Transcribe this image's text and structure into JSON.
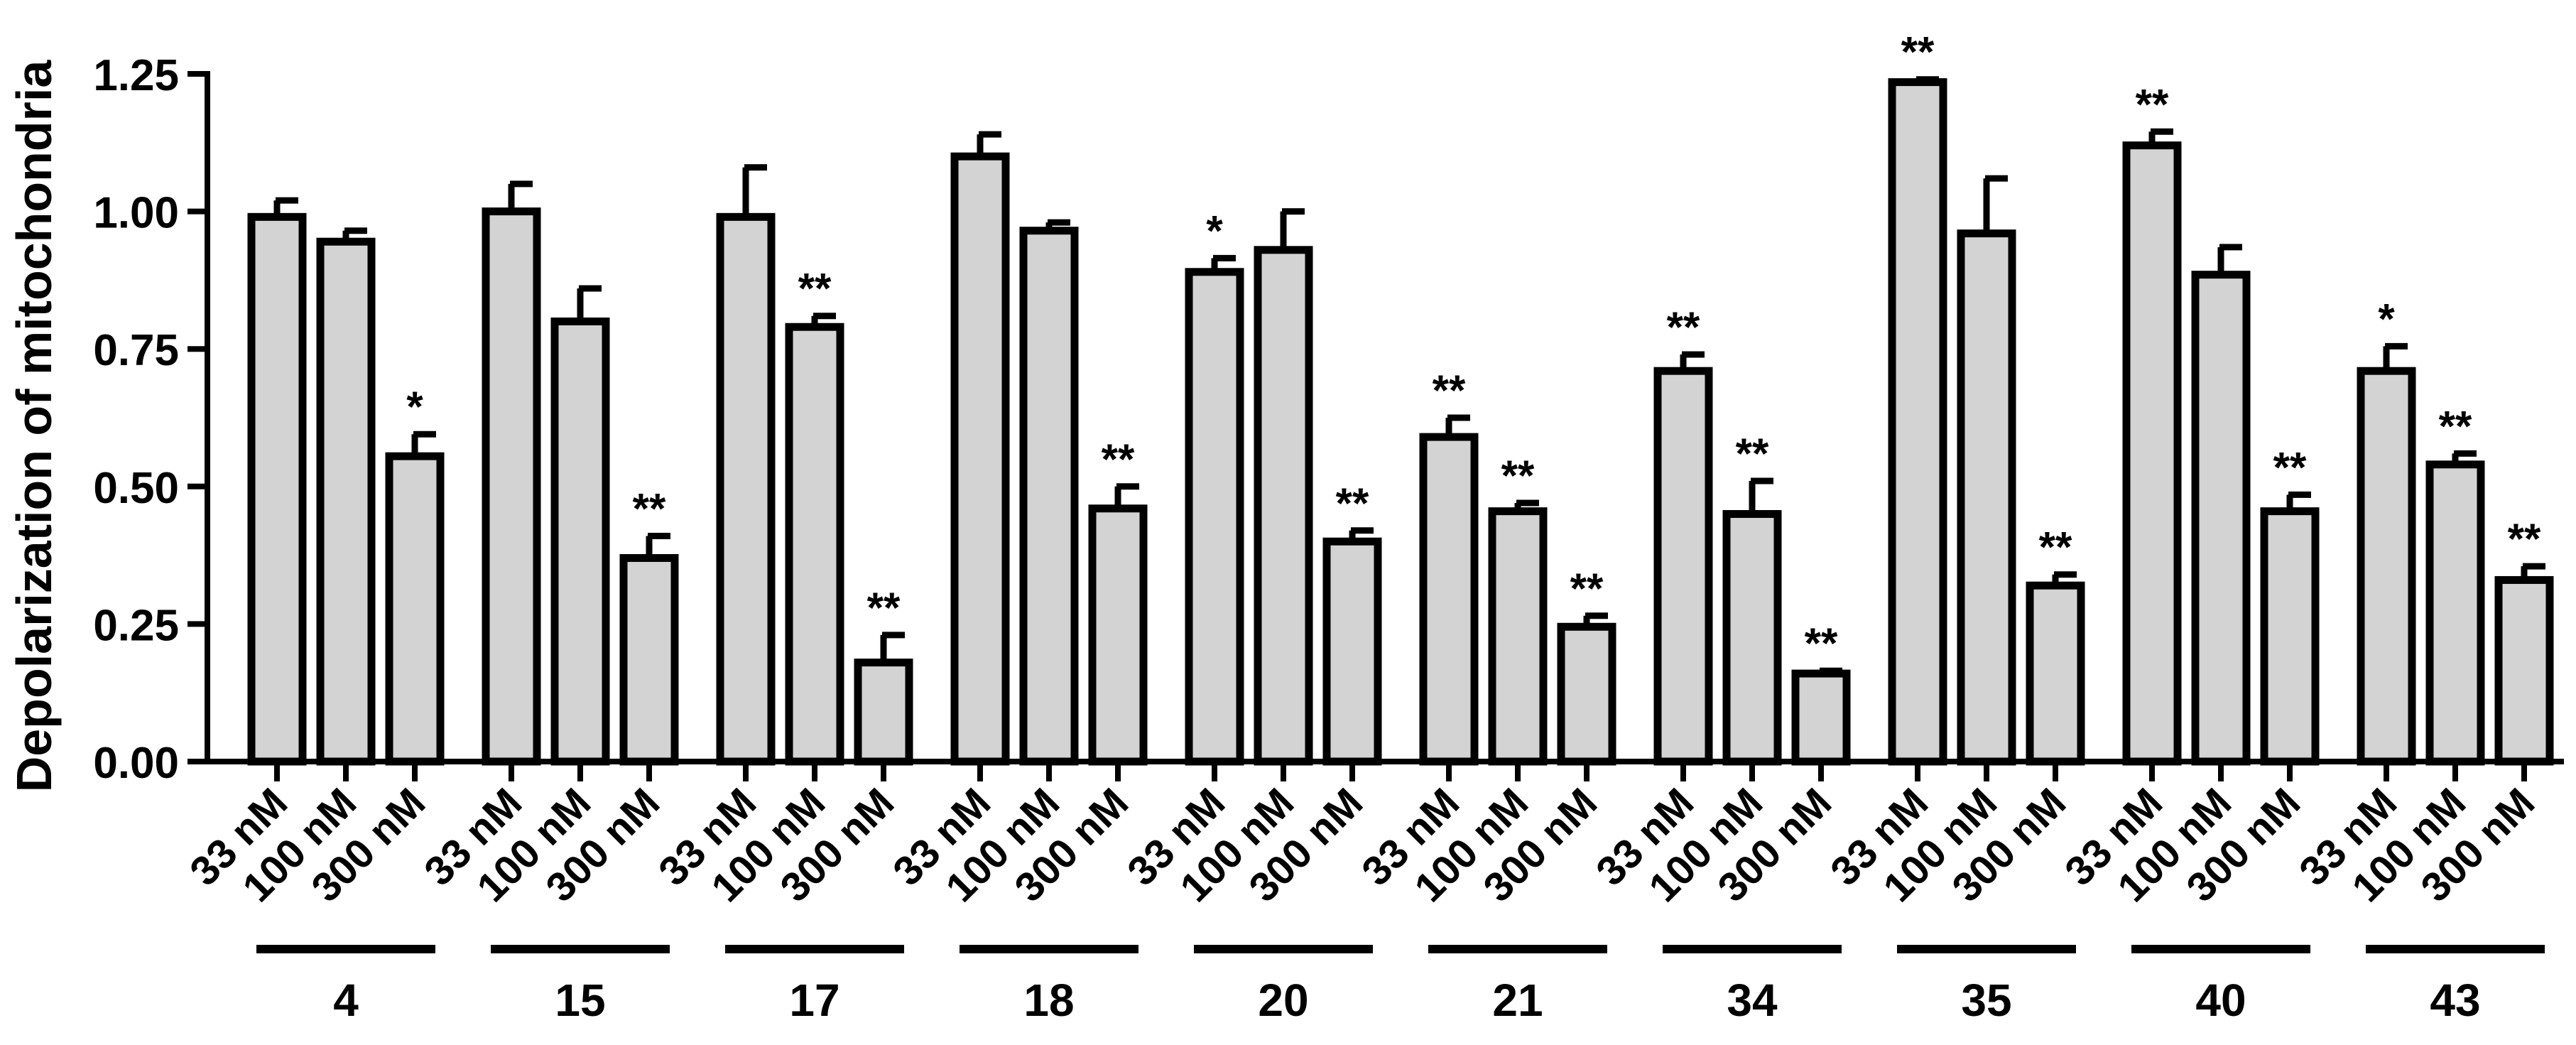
{
  "chart_data": {
    "type": "bar",
    "title": "",
    "ylabel": "Depolarization of mitochondria",
    "xlabel": "",
    "ylim": [
      0,
      1.25
    ],
    "yticks": [
      "0.00",
      "0.25",
      "0.50",
      "0.75",
      "1.00",
      "1.25"
    ],
    "grid": false,
    "concentrations": [
      "33 nM",
      "100 nM",
      "300 nM"
    ],
    "groups": [
      {
        "label": "4",
        "values": [
          0.99,
          0.945,
          0.555
        ],
        "errors": [
          0.03,
          0.02,
          0.04
        ],
        "significance": [
          "",
          "",
          "*"
        ]
      },
      {
        "label": "15",
        "values": [
          1.0,
          0.8,
          0.37
        ],
        "errors": [
          0.05,
          0.06,
          0.04
        ],
        "significance": [
          "",
          "",
          "**"
        ]
      },
      {
        "label": "17",
        "values": [
          0.99,
          0.79,
          0.18
        ],
        "errors": [
          0.09,
          0.02,
          0.05
        ],
        "significance": [
          "",
          "**",
          "**"
        ]
      },
      {
        "label": "18",
        "values": [
          1.1,
          0.965,
          0.46
        ],
        "errors": [
          0.04,
          0.015,
          0.04
        ],
        "significance": [
          "",
          "",
          "**"
        ]
      },
      {
        "label": "20",
        "values": [
          0.89,
          0.93,
          0.4
        ],
        "errors": [
          0.025,
          0.07,
          0.02
        ],
        "significance": [
          "*",
          "",
          "**"
        ]
      },
      {
        "label": "21",
        "values": [
          0.59,
          0.455,
          0.245
        ],
        "errors": [
          0.035,
          0.015,
          0.02
        ],
        "significance": [
          "**",
          "**",
          "**"
        ]
      },
      {
        "label": "34",
        "values": [
          0.71,
          0.45,
          0.16
        ],
        "errors": [
          0.03,
          0.06,
          0.005
        ],
        "significance": [
          "**",
          "**",
          "**"
        ]
      },
      {
        "label": "35",
        "values": [
          1.235,
          0.96,
          0.32
        ],
        "errors": [
          0.005,
          0.1,
          0.02
        ],
        "significance": [
          "**",
          "",
          "**"
        ]
      },
      {
        "label": "40",
        "values": [
          1.12,
          0.885,
          0.455
        ],
        "errors": [
          0.025,
          0.05,
          0.03
        ],
        "significance": [
          "**",
          "",
          "**"
        ]
      },
      {
        "label": "43",
        "values": [
          0.71,
          0.54,
          0.33
        ],
        "errors": [
          0.045,
          0.02,
          0.025
        ],
        "significance": [
          "*",
          "**",
          "**"
        ]
      }
    ],
    "bar_fill": "#d3d3d3",
    "bar_stroke": "#000000"
  }
}
